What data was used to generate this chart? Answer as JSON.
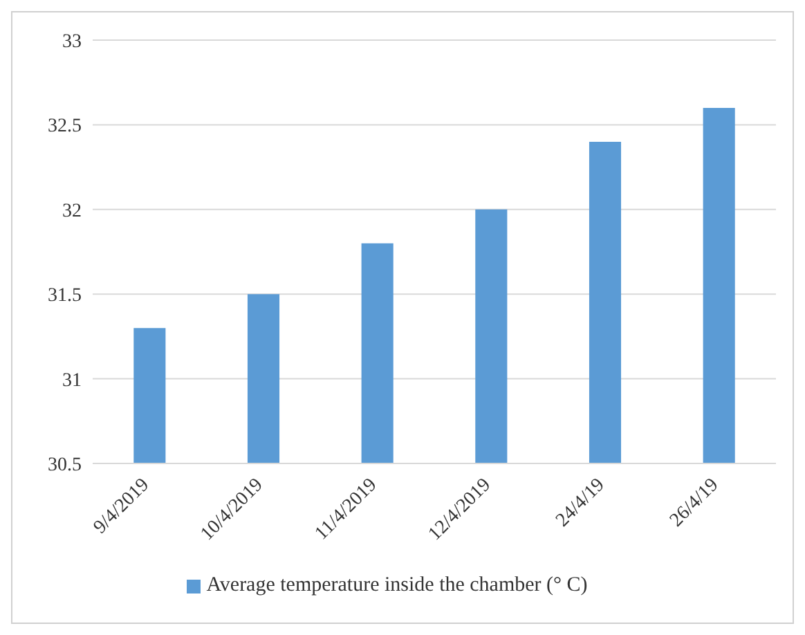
{
  "chart_data": {
    "type": "bar",
    "categories": [
      "9/4/2019",
      "10/4/2019",
      "11/4/2019",
      "12/4/2019",
      "24/4/19",
      "26/4/19"
    ],
    "series": [
      {
        "name": "Average temperature inside the chamber (° C)",
        "color": "#5b9bd5",
        "values": [
          31.3,
          31.5,
          31.8,
          32.0,
          32.4,
          32.6
        ]
      }
    ],
    "ylim": [
      30.5,
      33
    ],
    "yticks": [
      30.5,
      31,
      31.5,
      32,
      32.5,
      33
    ],
    "grid": "y",
    "legend": "bottom"
  }
}
